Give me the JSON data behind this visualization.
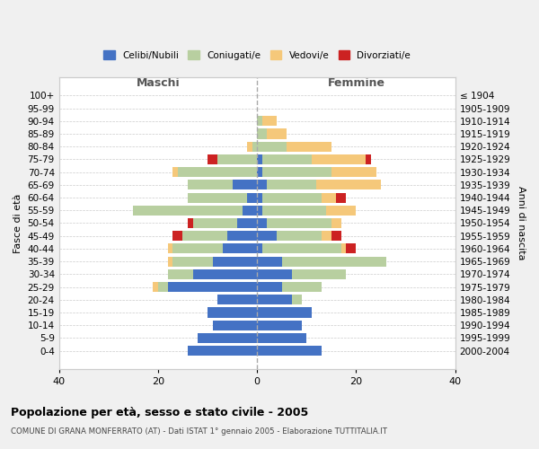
{
  "age_groups": [
    "0-4",
    "5-9",
    "10-14",
    "15-19",
    "20-24",
    "25-29",
    "30-34",
    "35-39",
    "40-44",
    "45-49",
    "50-54",
    "55-59",
    "60-64",
    "65-69",
    "70-74",
    "75-79",
    "80-84",
    "85-89",
    "90-94",
    "95-99",
    "100+"
  ],
  "birth_years": [
    "2000-2004",
    "1995-1999",
    "1990-1994",
    "1985-1989",
    "1980-1984",
    "1975-1979",
    "1970-1974",
    "1965-1969",
    "1960-1964",
    "1955-1959",
    "1950-1954",
    "1945-1949",
    "1940-1944",
    "1935-1939",
    "1930-1934",
    "1925-1929",
    "1920-1924",
    "1915-1919",
    "1910-1914",
    "1905-1909",
    "≤ 1904"
  ],
  "colors": {
    "celibe": "#4472c4",
    "coniugato": "#b8cfa0",
    "vedovo": "#f5c87a",
    "divorziato": "#cc2222"
  },
  "maschi": {
    "celibe": [
      14,
      12,
      9,
      10,
      8,
      18,
      13,
      9,
      7,
      6,
      4,
      3,
      2,
      5,
      0,
      0,
      0,
      0,
      0,
      0,
      0
    ],
    "coniugato": [
      0,
      0,
      0,
      0,
      0,
      2,
      5,
      8,
      10,
      9,
      9,
      22,
      12,
      9,
      16,
      8,
      1,
      0,
      0,
      0,
      0
    ],
    "vedovo": [
      0,
      0,
      0,
      0,
      0,
      1,
      0,
      1,
      1,
      0,
      0,
      0,
      0,
      0,
      1,
      0,
      1,
      0,
      0,
      0,
      0
    ],
    "divorziato": [
      0,
      0,
      0,
      0,
      0,
      0,
      0,
      0,
      0,
      2,
      1,
      0,
      0,
      0,
      0,
      2,
      0,
      0,
      0,
      0,
      0
    ]
  },
  "femmine": {
    "nubile": [
      13,
      10,
      9,
      11,
      7,
      5,
      7,
      5,
      1,
      4,
      2,
      1,
      1,
      2,
      1,
      1,
      0,
      0,
      0,
      0,
      0
    ],
    "coniugata": [
      0,
      0,
      0,
      0,
      2,
      8,
      11,
      21,
      16,
      9,
      13,
      13,
      12,
      10,
      14,
      10,
      6,
      2,
      1,
      0,
      0
    ],
    "vedova": [
      0,
      0,
      0,
      0,
      0,
      0,
      0,
      0,
      1,
      2,
      2,
      6,
      3,
      13,
      9,
      11,
      9,
      4,
      3,
      0,
      0
    ],
    "divorziata": [
      0,
      0,
      0,
      0,
      0,
      0,
      0,
      0,
      2,
      2,
      0,
      0,
      2,
      0,
      0,
      1,
      0,
      0,
      0,
      0,
      0
    ]
  },
  "xlim": [
    -40,
    40
  ],
  "xticks": [
    -40,
    -20,
    0,
    20,
    40
  ],
  "xticklabels": [
    "40",
    "20",
    "0",
    "20",
    "40"
  ],
  "title": "Popolazione per età, sesso e stato civile - 2005",
  "subtitle": "COMUNE DI GRANA MONFERRATO (AT) - Dati ISTAT 1° gennaio 2005 - Elaborazione TUTTITALIA.IT",
  "ylabel": "Fasce di età",
  "ylabel2": "Anni di nascita",
  "legend_labels": [
    "Celibi/Nubili",
    "Coniugati/e",
    "Vedovi/e",
    "Divorziati/e"
  ],
  "maschi_label": "Maschi",
  "femmine_label": "Femmine",
  "background_color": "#f0f0f0",
  "plot_bg_color": "#ffffff"
}
